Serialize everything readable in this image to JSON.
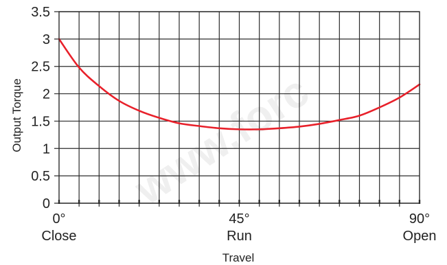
{
  "watermark": "www.forc",
  "chart_data": {
    "type": "line",
    "title": "",
    "xlabel": "Travel",
    "ylabel": "Output Torque",
    "xlim": [
      0,
      90
    ],
    "ylim": [
      0,
      3.5
    ],
    "grid": true,
    "y_ticks": [
      "0",
      "0.5",
      "1",
      "1.5",
      "2",
      "2.5",
      "3",
      "3.5"
    ],
    "x_tick_labels": [
      {
        "value": 0,
        "top": "0°",
        "bottom": "Close"
      },
      {
        "value": 45,
        "top": "45°",
        "bottom": "Run"
      },
      {
        "value": 90,
        "top": "90°",
        "bottom": "Open"
      }
    ],
    "series": [
      {
        "color": "#e8202a",
        "x": [
          0,
          5,
          10,
          15,
          20,
          25,
          30,
          35,
          40,
          45,
          50,
          55,
          60,
          65,
          70,
          75,
          80,
          85,
          90
        ],
        "y": [
          3.0,
          2.48,
          2.14,
          1.87,
          1.69,
          1.56,
          1.46,
          1.41,
          1.37,
          1.35,
          1.35,
          1.37,
          1.4,
          1.45,
          1.52,
          1.6,
          1.75,
          1.93,
          2.17
        ]
      }
    ]
  }
}
